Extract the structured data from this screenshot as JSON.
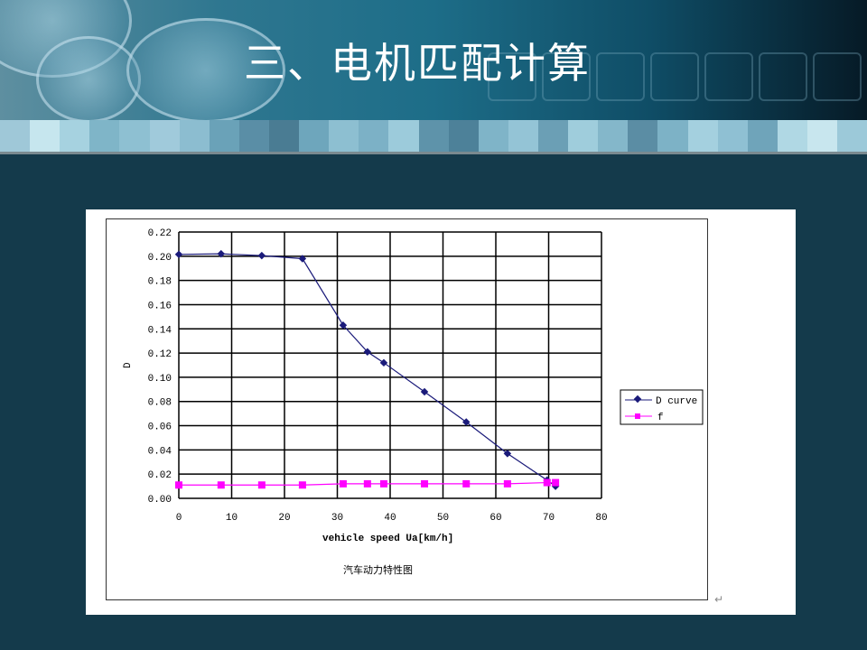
{
  "slide": {
    "title": "三、电机匹配计算"
  },
  "colors": {
    "background": "#143a4b",
    "d_curve": "#1a1a7a",
    "f_curve": "#ff00ff"
  },
  "chart_data": {
    "type": "line",
    "title": "汽车动力特性图",
    "xlabel": "vehicle speed Ua[km/h]",
    "ylabel": "D",
    "xlim": [
      0,
      80
    ],
    "ylim": [
      0,
      0.22
    ],
    "xticks": [
      "0",
      "10",
      "20",
      "30",
      "40",
      "50",
      "60",
      "70",
      "80"
    ],
    "yticks": [
      "0.00",
      "0.02",
      "0.04",
      "0.06",
      "0.08",
      "0.10",
      "0.12",
      "0.14",
      "0.16",
      "0.18",
      "0.20",
      "0.22"
    ],
    "grid": true,
    "legend_position": "right",
    "x": [
      0,
      8.0,
      15.7,
      23.4,
      31.1,
      35.7,
      38.8,
      46.5,
      54.4,
      62.2,
      69.7,
      71.3
    ],
    "series": [
      {
        "name": "D curve",
        "marker": "diamond",
        "values": [
          0.2015,
          0.202,
          0.2005,
          0.198,
          0.143,
          0.121,
          0.112,
          0.088,
          0.063,
          0.037,
          0.015,
          0.01
        ]
      },
      {
        "name": "f",
        "marker": "square",
        "values": [
          0.011,
          0.011,
          0.011,
          0.011,
          0.012,
          0.012,
          0.012,
          0.012,
          0.012,
          0.012,
          0.013,
          0.013
        ]
      }
    ]
  }
}
